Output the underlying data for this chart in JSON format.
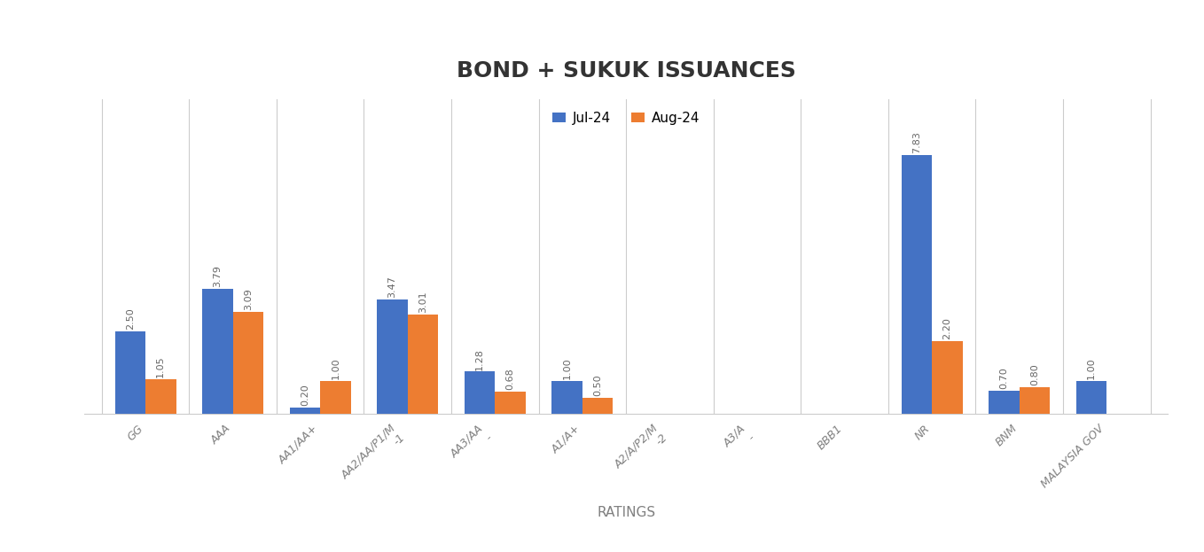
{
  "title": "BOND + SUKUK ISSUANCES",
  "xlabel": "RATINGS",
  "categories_line1": [
    "GG",
    "AAA",
    "AA1/AA+",
    "AA2/AA/P1/M",
    "AA3/AA",
    "A1/A+",
    "A2/A/P2/M",
    "A3/A",
    "BBB1",
    "NR",
    "BNM",
    "MALAYSIA GOV"
  ],
  "categories_line2": [
    "",
    "",
    "",
    "-1",
    "-",
    "",
    "-2",
    "-",
    "",
    "",
    "",
    ""
  ],
  "jul24": [
    2.5,
    3.79,
    0.2,
    3.47,
    1.28,
    1.0,
    0.0,
    0.0,
    0.0,
    7.83,
    0.7,
    1.0
  ],
  "aug24": [
    1.05,
    3.09,
    1.0,
    3.01,
    0.68,
    0.5,
    0.0,
    0.0,
    0.0,
    2.2,
    0.8,
    0.0
  ],
  "jul24_label": "Jul-24",
  "aug24_label": "Aug-24",
  "bar_color_jul": "#4472C4",
  "bar_color_aug": "#ED7D31",
  "background_color": "#FFFFFF",
  "ylim": [
    0,
    9.5
  ],
  "bar_width": 0.35,
  "title_fontsize": 18,
  "legend_fontsize": 11,
  "axis_label_fontsize": 11,
  "tick_fontsize": 9,
  "value_fontsize": 8
}
